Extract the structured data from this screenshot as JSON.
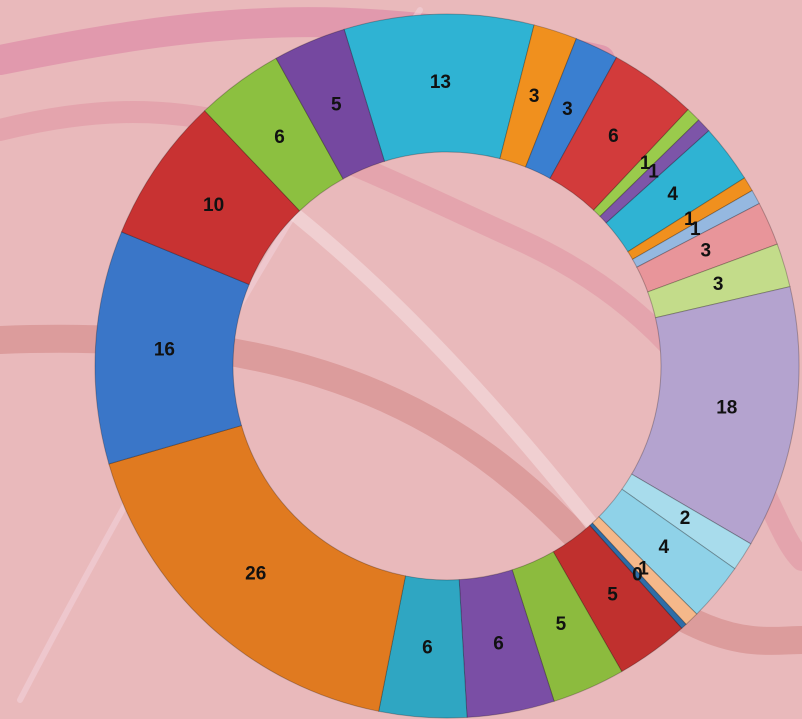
{
  "chart_data": {
    "type": "donut",
    "values": [
      13,
      3,
      3,
      6,
      1,
      1,
      4,
      1,
      1,
      3,
      3,
      18,
      2,
      4,
      1,
      0.4,
      5,
      5,
      6,
      6,
      26,
      16,
      10,
      6,
      5
    ],
    "value_labels": [
      "13",
      "3",
      "3",
      "6",
      "1",
      "1",
      "4",
      "1",
      "1",
      "3",
      "3",
      "18",
      "2",
      "4",
      "1",
      "0",
      "5",
      "5",
      "6",
      "6",
      "26",
      "16",
      "10",
      "6",
      "5"
    ],
    "colors": [
      "#2fb3d3",
      "#f0901e",
      "#3a7fd0",
      "#d23b3b",
      "#9acb4c",
      "#7d55a8",
      "#2fb3d3",
      "#f0901e",
      "#95b8e0",
      "#e8959a",
      "#c3dc8a",
      "#b4a3cf",
      "#a8dcec",
      "#8fd2e8",
      "#f5b88a",
      "#2e6da8",
      "#c0302e",
      "#8cbb3e",
      "#7a4ea5",
      "#2fa6c2",
      "#e07a20",
      "#3a76c8",
      "#c83232",
      "#8cc040",
      "#7548a0"
    ]
  }
}
